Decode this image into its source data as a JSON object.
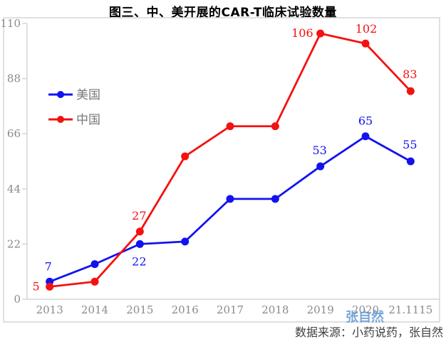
{
  "chart_data": {
    "type": "line",
    "title": "图三、中、美开展的CAR-T临床试验数量",
    "categories": [
      "2013",
      "2014",
      "2015",
      "2016",
      "2017",
      "2018",
      "2019",
      "2020",
      "21.1115"
    ],
    "xlabel": "",
    "ylabel": "",
    "ylim": [
      0,
      110
    ],
    "yticks": [
      0,
      22,
      44,
      66,
      88,
      110
    ],
    "grid": false,
    "legend": {
      "position": "inside-top-left",
      "items": [
        "美国",
        "中国"
      ]
    },
    "series": [
      {
        "name": "美国",
        "color": "#1212f0",
        "values": [
          7,
          14,
          22,
          23,
          40,
          40,
          53,
          65,
          55
        ],
        "point_labels": [
          {
            "index": 0,
            "text": "7",
            "dx": -2,
            "dy": -16,
            "anchor": "middle"
          },
          {
            "index": 2,
            "text": "22",
            "dx": -1,
            "dy": 30,
            "anchor": "middle"
          },
          {
            "index": 6,
            "text": "53",
            "dx": -1,
            "dy": -17,
            "anchor": "middle"
          },
          {
            "index": 7,
            "text": "65",
            "dx": 0,
            "dy": -16,
            "anchor": "middle"
          },
          {
            "index": 8,
            "text": "55",
            "dx": -1,
            "dy": -18,
            "anchor": "middle"
          }
        ]
      },
      {
        "name": "中国",
        "color": "#f61010",
        "values": [
          5,
          7,
          27,
          57,
          69,
          69,
          106,
          102,
          83
        ],
        "point_labels": [
          {
            "index": 0,
            "text": "5",
            "dx": -14,
            "dy": 5,
            "anchor": "end"
          },
          {
            "index": 2,
            "text": "27",
            "dx": -1,
            "dy": -17,
            "anchor": "middle"
          },
          {
            "index": 6,
            "text": "106",
            "dx": -10,
            "dy": 5,
            "anchor": "end"
          },
          {
            "index": 7,
            "text": "102",
            "dx": 1,
            "dy": -15,
            "anchor": "middle"
          },
          {
            "index": 8,
            "text": "83",
            "dx": -1,
            "dy": -18,
            "anchor": "middle"
          }
        ]
      }
    ],
    "footer": "数据来源：小药说药，张自然",
    "watermark": "张自然",
    "colors": {
      "us_series": "#1212f0",
      "china_series": "#f61010",
      "axis_line": "#d5d5d5",
      "tick_label": "#8a8a8a",
      "watermark": "#5e92d4"
    }
  }
}
